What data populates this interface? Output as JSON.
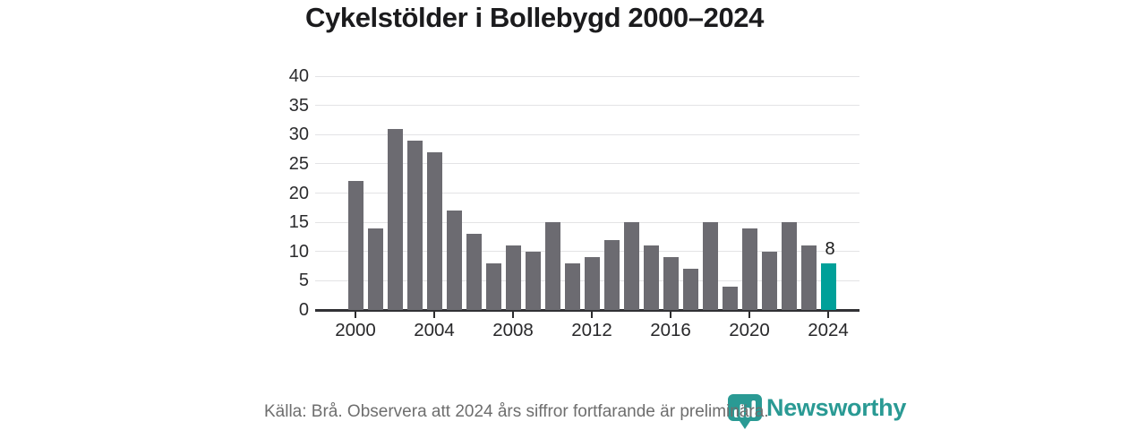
{
  "title": "Cykelstölder i Bollebygd 2000–2024",
  "chart_data": {
    "type": "bar",
    "title": "Cykelstölder i Bollebygd 2000–2024",
    "x": [
      2000,
      2001,
      2002,
      2003,
      2004,
      2005,
      2006,
      2007,
      2008,
      2009,
      2010,
      2011,
      2012,
      2013,
      2014,
      2015,
      2016,
      2017,
      2018,
      2019,
      2020,
      2021,
      2022,
      2023,
      2024
    ],
    "values": [
      22,
      14,
      31,
      29,
      27,
      17,
      13,
      8,
      11,
      10,
      15,
      8,
      9,
      12,
      15,
      11,
      9,
      7,
      15,
      4,
      14,
      10,
      15,
      11,
      8
    ],
    "ylim": [
      0,
      40
    ],
    "yticks": [
      0,
      5,
      10,
      15,
      20,
      25,
      30,
      35,
      40
    ],
    "xticks": [
      2000,
      2004,
      2008,
      2012,
      2016,
      2020,
      2024
    ],
    "grid": true,
    "bar_color": "#6C6B71",
    "highlight_year": 2024,
    "highlight_color": "#00A099",
    "highlight_value_label": "8",
    "xlabel": "",
    "ylabel": ""
  },
  "footer": {
    "source": "Källa: Brå. Observera att 2024 års siffror fortfarande är preliminära.",
    "logo_text": "Newsworthy"
  },
  "colors": {
    "title_text": "#1B1B1D",
    "axis_text": "#2B2B2D",
    "gridline": "#E3E3E5",
    "baseline": "#313135",
    "bar_gray": "#6C6B71",
    "accent_teal": "#00A099",
    "logo_teal": "#2A9A94",
    "footer_text": "#6E6E6E"
  }
}
